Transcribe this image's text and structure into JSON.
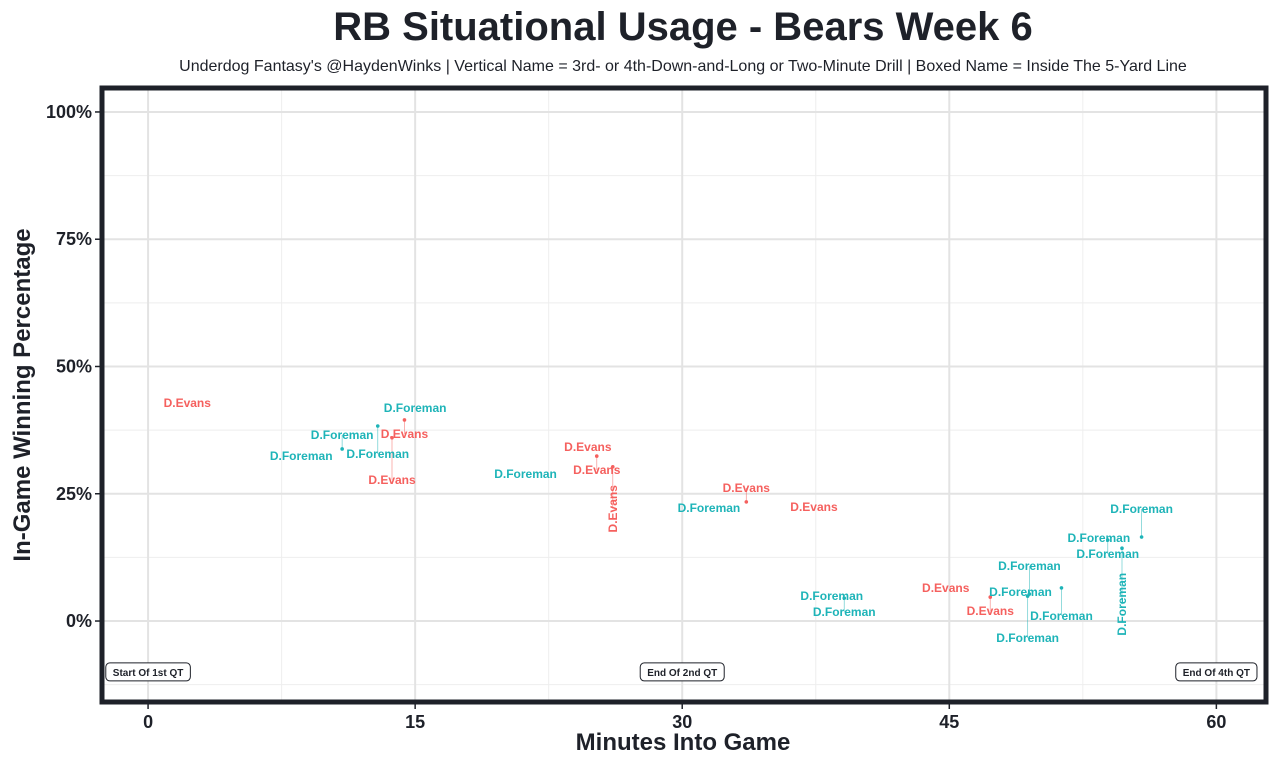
{
  "chart_data": {
    "type": "scatter",
    "title": "RB Situational Usage - Bears Week 6",
    "subtitle": "Underdog Fantasy's @HaydenWinks | Vertical Name = 3rd- or 4th-Down-and-Long or Two-Minute Drill | Boxed Name = Inside The 5-Yard Line",
    "xlabel": "Minutes Into Game",
    "ylabel": "In-Game Winning Percentage",
    "xlim": [
      -2.7,
      62.9
    ],
    "ylim": [
      -16.3,
      105.1
    ],
    "x_ticks": [
      0,
      15,
      30,
      45,
      60
    ],
    "x_tick_labels": [
      "0",
      "15",
      "30",
      "45",
      "60"
    ],
    "y_ticks": [
      0,
      25,
      50,
      75,
      100
    ],
    "y_tick_labels": [
      "0%",
      "25%",
      "50%",
      "75%",
      "100%"
    ],
    "grid": true,
    "colors": {
      "D.Evans": "#f5605e",
      "D.Foreman": "#1eb4b8"
    },
    "points": [
      {
        "label": "D.Evans",
        "x": 2.2,
        "y": 42.8,
        "vertical": false
      },
      {
        "label": "D.Foreman",
        "x": 15.0,
        "y": 41.8,
        "vertical": false
      },
      {
        "label": "D.Evans",
        "x": 14.4,
        "y": 39.5,
        "vertical": false
      },
      {
        "label": "D.Foreman",
        "x": 12.9,
        "y": 38.3,
        "vertical": false
      },
      {
        "label": "D.Evans",
        "x": 13.7,
        "y": 36.0,
        "vertical": false
      },
      {
        "label": "D.Foreman",
        "x": 10.9,
        "y": 33.8,
        "vertical": false
      },
      {
        "label": "D.Foreman",
        "x": 8.6,
        "y": 32.4,
        "vertical": false
      },
      {
        "label": "D.Evans",
        "x": 24.7,
        "y": 34.2,
        "vertical": false
      },
      {
        "label": "D.Evans",
        "x": 25.2,
        "y": 32.4,
        "vertical": false
      },
      {
        "label": "D.Evans",
        "x": 26.1,
        "y": 30.3,
        "vertical": true
      },
      {
        "label": "D.Foreman",
        "x": 21.2,
        "y": 28.9,
        "vertical": false
      },
      {
        "label": "D.Foreman",
        "x": 31.5,
        "y": 22.2,
        "vertical": false
      },
      {
        "label": "D.Evans",
        "x": 33.6,
        "y": 23.4,
        "vertical": false
      },
      {
        "label": "D.Evans",
        "x": 37.4,
        "y": 22.4,
        "vertical": false
      },
      {
        "label": "D.Foreman",
        "x": 53.4,
        "y": 16.3,
        "vertical": false
      },
      {
        "label": "D.Foreman",
        "x": 53.9,
        "y": 15.9,
        "vertical": false
      },
      {
        "label": "D.Foreman",
        "x": 55.8,
        "y": 16.5,
        "vertical": false
      },
      {
        "label": "D.Foreman",
        "x": 54.7,
        "y": 14.3,
        "vertical": true
      },
      {
        "label": "D.Foreman",
        "x": 38.4,
        "y": 4.9,
        "vertical": false
      },
      {
        "label": "D.Foreman",
        "x": 39.1,
        "y": 4.5,
        "vertical": false
      },
      {
        "label": "D.Evans",
        "x": 44.8,
        "y": 6.5,
        "vertical": false
      },
      {
        "label": "D.Evans",
        "x": 47.3,
        "y": 4.7,
        "vertical": false
      },
      {
        "label": "D.Foreman",
        "x": 49.0,
        "y": 5.7,
        "vertical": false
      },
      {
        "label": "D.Foreman",
        "x": 49.5,
        "y": 5.3,
        "vertical": false
      },
      {
        "label": "D.Foreman",
        "x": 49.4,
        "y": 4.9,
        "vertical": false
      },
      {
        "label": "D.Foreman",
        "x": 51.3,
        "y": 6.5,
        "vertical": false
      }
    ],
    "annotations": [
      {
        "text": "Start Of 1st QT",
        "x": 0,
        "y": -10
      },
      {
        "text": "End Of 2nd QT",
        "x": 30,
        "y": -10
      },
      {
        "text": "End Of 4th QT",
        "x": 60,
        "y": -10
      }
    ]
  }
}
